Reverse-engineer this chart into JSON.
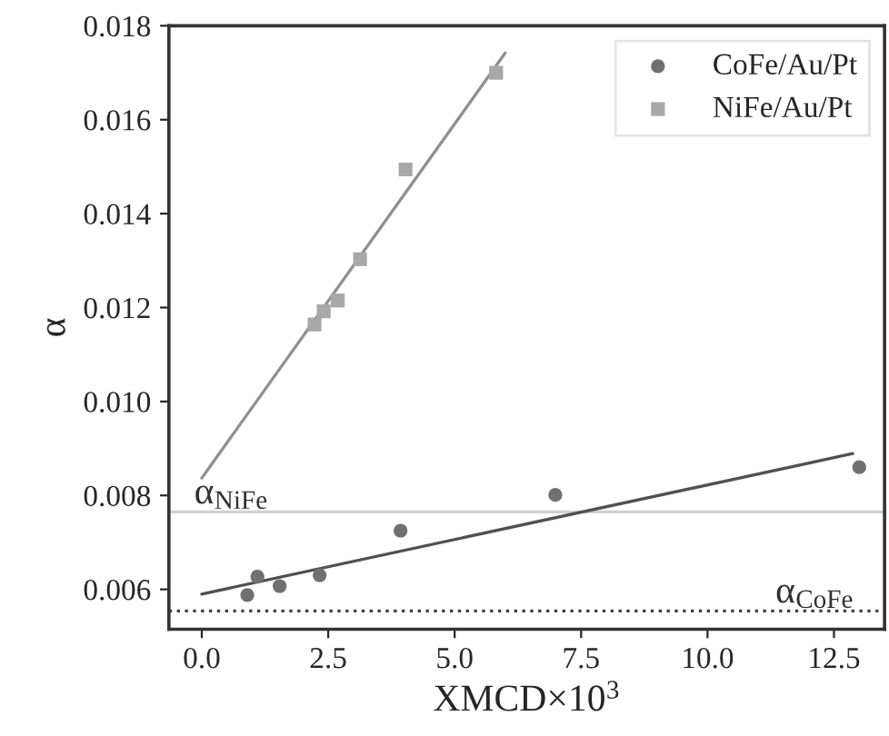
{
  "chart_data": {
    "type": "scatter",
    "xlabel": "XMCD×10$^{3}$",
    "ylabel": "α",
    "xlim": [
      -0.65,
      13.5
    ],
    "ylim": [
      0.00515,
      0.018
    ],
    "xticks": [
      {
        "value": 0,
        "label": "0.0"
      },
      {
        "value": 2.5,
        "label": "2.5"
      },
      {
        "value": 5,
        "label": "5.0"
      },
      {
        "value": 7.5,
        "label": "7.5"
      },
      {
        "value": 10,
        "label": "10.0"
      },
      {
        "value": 12.5,
        "label": "12.5"
      }
    ],
    "yticks": [
      {
        "value": 0.006,
        "label": "0.006"
      },
      {
        "value": 0.008,
        "label": "0.008"
      },
      {
        "value": 0.01,
        "label": "0.010"
      },
      {
        "value": 0.012,
        "label": "0.012"
      },
      {
        "value": 0.014,
        "label": "0.014"
      },
      {
        "value": 0.016,
        "label": "0.016"
      },
      {
        "value": 0.018,
        "label": "0.018"
      }
    ],
    "series": [
      {
        "name": "CoFe/Au/Pt",
        "marker": "circle",
        "color": "#707070",
        "x": [
          0.9,
          1.1,
          1.54,
          2.33,
          3.93,
          6.99,
          13.0
        ],
        "values": [
          0.00588,
          0.00627,
          0.00607,
          0.0063,
          0.00725,
          0.00801,
          0.0086
        ]
      },
      {
        "name": "NiFe/Au/Pt",
        "marker": "square",
        "color": "#a8a8a8",
        "x": [
          2.23,
          2.41,
          2.69,
          3.13,
          4.03,
          5.82
        ],
        "values": [
          0.01164,
          0.01192,
          0.01215,
          0.01303,
          0.01494,
          0.017
        ]
      },
      {
        "type": "line",
        "color": "#505050",
        "x": [
          0,
          12.87
        ],
        "values": [
          0.0059,
          0.00889
        ]
      },
      {
        "type": "line",
        "color": "#909090",
        "x": [
          0,
          6.0
        ],
        "values": [
          0.00837,
          0.01742
        ]
      }
    ],
    "ref_lines": [
      {
        "axis": "y",
        "value": 0.00554,
        "label": "α$_{CoFe}$",
        "color": "#404040",
        "line_style": "dotted"
      },
      {
        "axis": "y",
        "value": 0.00765,
        "label": "α$_{NiFe}$",
        "color": "#d0d0d0",
        "line_style": "solid"
      }
    ],
    "legend": "top right",
    "grid": false
  }
}
